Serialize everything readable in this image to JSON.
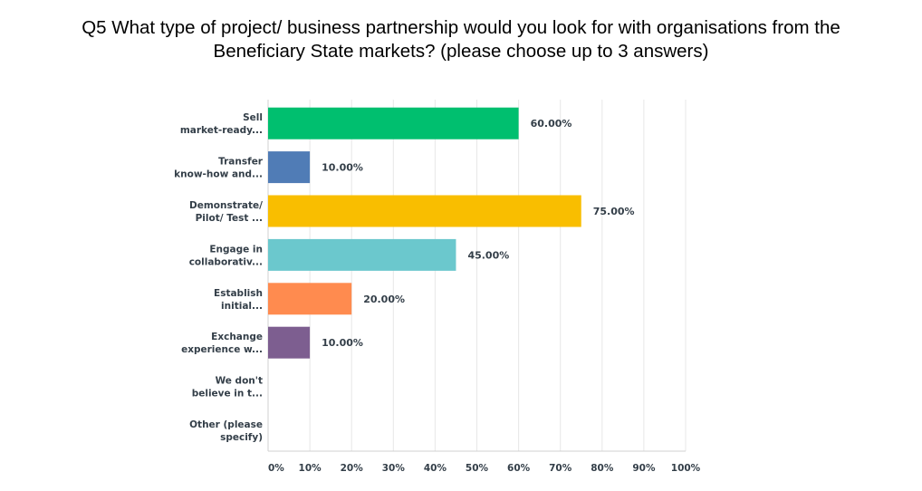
{
  "chart_data": {
    "type": "bar",
    "orientation": "horizontal",
    "title_lines": [
      "Q5 What type of project/ business partnership would you look for with organisations from the",
      "Beneficiary State markets? (please choose up to 3 answers)"
    ],
    "categories": [
      [
        "Sell",
        "market-ready..."
      ],
      [
        "Transfer",
        "know-how and..."
      ],
      [
        "Demonstrate/",
        "Pilot/ Test ..."
      ],
      [
        "Engage in",
        "collaborativ..."
      ],
      [
        "Establish",
        "initial..."
      ],
      [
        "Exchange",
        "experience w..."
      ],
      [
        "We don't",
        "believe in t..."
      ],
      [
        "Other (please",
        "specify)"
      ]
    ],
    "values": [
      60,
      10,
      75,
      45,
      20,
      10,
      0,
      0
    ],
    "value_labels": [
      "60.00%",
      "10.00%",
      "75.00%",
      "45.00%",
      "20.00%",
      "10.00%",
      "",
      ""
    ],
    "colors": [
      "#00bf6f",
      "#507cb6",
      "#f9be00",
      "#6bc8cd",
      "#ff8b4f",
      "#7d5e90",
      "#d25f90",
      "#c1c1c1"
    ],
    "xlim": [
      0,
      100
    ],
    "xticks": [
      "0%",
      "10%",
      "20%",
      "30%",
      "40%",
      "50%",
      "60%",
      "70%",
      "80%",
      "90%",
      "100%"
    ],
    "grid": true,
    "grid_color": "#e7e7e7",
    "text_color": "#333e48"
  }
}
